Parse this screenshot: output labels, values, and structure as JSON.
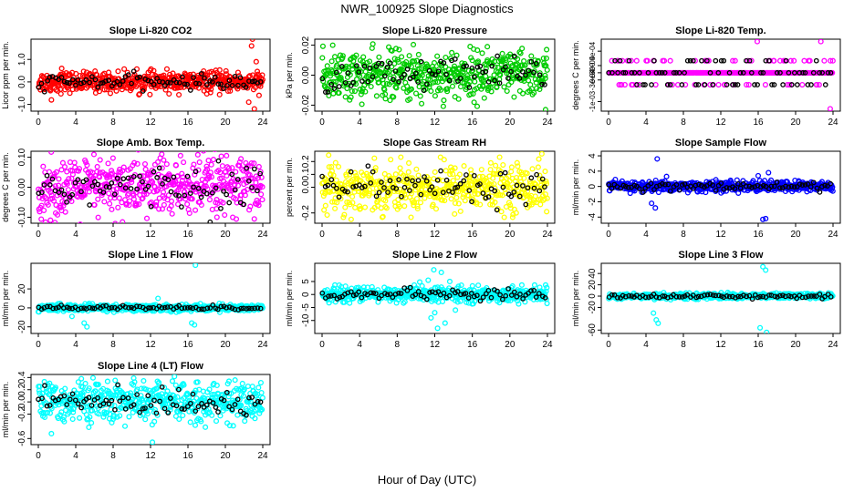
{
  "chart_data": {
    "title": "NWR_100925  Slope Diagnostics",
    "xlabel": "Hour of Day (UTC)",
    "x_ticks": [
      "0",
      "4",
      "8",
      "12",
      "16",
      "20",
      "24"
    ],
    "xlim": [
      0,
      24
    ],
    "panels": [
      {
        "type": "scatter",
        "title": "Slope Li-820 CO2",
        "ylabel": "Licor ppm per min.",
        "color": "#ff0000",
        "ylim": [
          -1.3,
          1.9
        ],
        "yticks": [
          "-1.0",
          "0.0",
          "1.0"
        ],
        "ytick_values": [
          -1,
          0,
          1
        ],
        "spread": 0.22,
        "mean": 0.0,
        "outliers": [
          [
            2.5,
            0.6
          ],
          [
            1.4,
            -0.8
          ],
          [
            22.8,
            1.6
          ],
          [
            22.9,
            1.9
          ],
          [
            22.5,
            -0.9
          ],
          [
            23.1,
            -1.2
          ],
          [
            23.3,
            0.9
          ],
          [
            23.6,
            -0.6
          ]
        ]
      },
      {
        "type": "scatter",
        "title": "Slope Li-820 Pressure",
        "ylabel": "kPa per min.",
        "color": "#00cc00",
        "ylim": [
          -0.024,
          0.024
        ],
        "yticks": [
          "-0.02",
          "0.00",
          "0.02"
        ],
        "ytick_values": [
          -0.02,
          0,
          0.02
        ],
        "spread": 0.008,
        "mean": 0.0,
        "outliers": [
          [
            17.6,
            0.019
          ],
          [
            8.2,
            0.017
          ],
          [
            23.8,
            -0.023
          ],
          [
            10.6,
            -0.019
          ]
        ]
      },
      {
        "type": "scatter",
        "title": "Slope Li-820 Temp.",
        "ylabel": "degrees C per min.",
        "color": "#ff00ff",
        "ylim": [
          -0.0016,
          0.0014
        ],
        "yticks": [
          "-1e-03",
          "-3e-04",
          "0e+00",
          "3e-04",
          "9e-04"
        ],
        "ytick_values": [
          -0.0012,
          -0.0003,
          0,
          0.0003,
          0.0009
        ],
        "spread": 0.00025,
        "mean": 0.0,
        "discrete_levels": [
          -0.0005,
          0,
          0.0005
        ],
        "outliers": [
          [
            15.9,
            0.0013
          ],
          [
            22.7,
            0.0013
          ],
          [
            23.7,
            -0.0015
          ]
        ]
      },
      {
        "type": "scatter",
        "title": "Slope Amb. Box Temp.",
        "ylabel": "degrees C per min.",
        "color": "#ff00ff",
        "ylim": [
          -0.12,
          0.12
        ],
        "yticks": [
          "-0.10",
          "0.00",
          "0.10"
        ],
        "ytick_values": [
          -0.1,
          0,
          0.1
        ],
        "spread": 0.05,
        "mean": 0.0,
        "outliers": [
          [
            1.3,
            -0.11
          ],
          [
            13.2,
            0.11
          ],
          [
            19.1,
            -0.1
          ]
        ]
      },
      {
        "type": "scatter",
        "title": "Slope Gas Stream RH",
        "ylabel": "percent per min.",
        "color": "#ffff00",
        "ylim": [
          -0.28,
          0.28
        ],
        "yticks": [
          "-0.2",
          "0.0",
          "0.1",
          "0.2"
        ],
        "ytick_values": [
          -0.2,
          0,
          0.1,
          0.2
        ],
        "spread": 0.09,
        "mean": 0.0,
        "outliers": [
          [
            0.7,
            0.25
          ],
          [
            3.1,
            -0.25
          ],
          [
            23.4,
            0.26
          ]
        ]
      },
      {
        "type": "scatter",
        "title": "Slope Sample Flow",
        "ylabel": "ml/min per min.",
        "color": "#0000ff",
        "ylim": [
          -4.8,
          4.6
        ],
        "yticks": [
          "-4",
          "-2",
          "0",
          "2",
          "4"
        ],
        "ytick_values": [
          -4,
          -2,
          0,
          2,
          4
        ],
        "spread": 0.35,
        "mean": 0.0,
        "outliers": [
          [
            5.2,
            3.6
          ],
          [
            4.6,
            -2.2
          ],
          [
            5.0,
            -2.8
          ],
          [
            16.5,
            -4.3
          ],
          [
            16.8,
            -4.2
          ],
          [
            17.1,
            1.8
          ],
          [
            16.0,
            1.4
          ],
          [
            6.2,
            1.3
          ]
        ]
      },
      {
        "type": "scatter",
        "title": "Slope Line 1 Flow",
        "ylabel": "ml/min per min.",
        "color": "#00ffff",
        "ylim": [
          -27,
          47
        ],
        "yticks": [
          "-20",
          "0",
          "20"
        ],
        "ytick_values": [
          -20,
          0,
          20
        ],
        "spread": 1.8,
        "mean": 0.0,
        "outliers": [
          [
            16.8,
            45
          ],
          [
            16.4,
            -16
          ],
          [
            16.7,
            -18
          ],
          [
            5.2,
            -20
          ],
          [
            4.9,
            -16
          ],
          [
            12.8,
            10
          ],
          [
            3.6,
            -9
          ]
        ]
      },
      {
        "type": "scatter",
        "title": "Slope Line 2 Flow",
        "ylabel": "ml/min per min.",
        "color": "#00ffff",
        "ylim": [
          -15,
          12
        ],
        "yticks": [
          "-10",
          "-5",
          "0",
          "5"
        ],
        "ytick_values": [
          -10,
          -5,
          0,
          5
        ],
        "spread": 1.4,
        "mean": 0.0,
        "outliers": [
          [
            11.9,
            9.5
          ],
          [
            12.7,
            8.5
          ],
          [
            12.3,
            -13
          ],
          [
            13.1,
            -11
          ],
          [
            12.0,
            -7
          ],
          [
            11.3,
            5.5
          ],
          [
            13.6,
            5
          ],
          [
            10.4,
            4.8
          ],
          [
            14.2,
            -6
          ],
          [
            11.6,
            -9
          ]
        ]
      },
      {
        "type": "scatter",
        "title": "Slope Line 3 Flow",
        "ylabel": "ml/min per min.",
        "color": "#00ffff",
        "ylim": [
          -66,
          58
        ],
        "yticks": [
          "-60",
          "-20",
          "0",
          "20",
          "40"
        ],
        "ytick_values": [
          -60,
          -20,
          0,
          20,
          40
        ],
        "spread": 2.5,
        "mean": 0.0,
        "outliers": [
          [
            16.5,
            52
          ],
          [
            16.8,
            46
          ],
          [
            5.1,
            -42
          ],
          [
            5.3,
            -48
          ],
          [
            16.9,
            -64
          ],
          [
            16.2,
            -56
          ],
          [
            4.8,
            -30
          ]
        ]
      },
      {
        "type": "scatter",
        "title": "Slope Line 4 (LT) Flow",
        "ylabel": "ml/min per min.",
        "color": "#00ffff",
        "ylim": [
          -0.7,
          0.45
        ],
        "yticks": [
          "-0.6",
          "-0.2",
          "0.0",
          "0.2",
          "0.4"
        ],
        "ytick_values": [
          -0.6,
          -0.2,
          0,
          0.2,
          0.4
        ],
        "spread": 0.16,
        "mean": 0.0,
        "outliers": [
          [
            12.2,
            -0.66
          ],
          [
            4.6,
            0.38
          ],
          [
            10.2,
            0.39
          ],
          [
            1.4,
            -0.52
          ]
        ]
      }
    ]
  }
}
